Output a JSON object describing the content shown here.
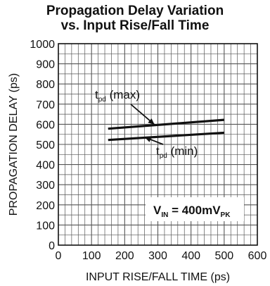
{
  "chart_data": {
    "type": "line",
    "title_line1": "Propagation Delay Variation",
    "title_line2": "vs. Input Rise/Fall Time",
    "xlabel": "INPUT RISE/FALL TIME (ps)",
    "ylabel": "PROPAGATION DELAY (ps)",
    "xlim": [
      0,
      600
    ],
    "ylim": [
      0,
      1000
    ],
    "x_ticks": [
      "0",
      "100",
      "200",
      "300",
      "400",
      "500",
      "600"
    ],
    "y_ticks": [
      "0",
      "100",
      "200",
      "300",
      "400",
      "500",
      "600",
      "700",
      "800",
      "900",
      "1000"
    ],
    "grid": true,
    "series": [
      {
        "name_main": "t",
        "name_sub": "pd",
        "name_suffix": " (max)",
        "x": [
          150,
          500
        ],
        "y": [
          578,
          622
        ]
      },
      {
        "name_main": "t",
        "name_sub": "pd",
        "name_suffix": " (min)",
        "x": [
          150,
          500
        ],
        "y": [
          522,
          558
        ]
      }
    ],
    "condition": {
      "main": "V",
      "sub1": "IN",
      "mid": " = 400mV",
      "sub2": "PK"
    }
  }
}
